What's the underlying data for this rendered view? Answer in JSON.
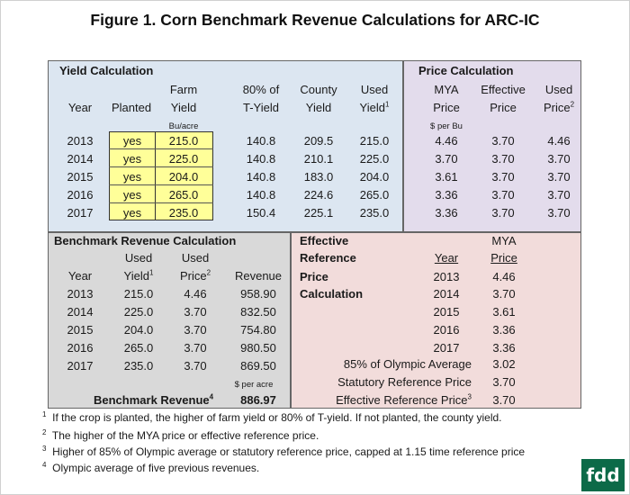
{
  "title": "Figure 1. Corn Benchmark Revenue Calculations for ARC-IC",
  "yield_calc": {
    "heading": "Yield Calculation",
    "h_year": "Year",
    "h_planted": "Planted",
    "h_farm_1": "Farm",
    "h_farm_2": "Yield",
    "h_80_1": "80% of",
    "h_80_2": "T-Yield",
    "h_county_1": "County",
    "h_county_2": "Yield",
    "h_used_1": "Used",
    "h_used_2": "Yield",
    "h_used_sup": "1",
    "unit": "Bu/acre",
    "rows": [
      {
        "year": "2013",
        "planted": "yes",
        "farm": "215.0",
        "t80": "140.8",
        "county": "209.5",
        "used": "215.0"
      },
      {
        "year": "2014",
        "planted": "yes",
        "farm": "225.0",
        "t80": "140.8",
        "county": "210.1",
        "used": "225.0"
      },
      {
        "year": "2015",
        "planted": "yes",
        "farm": "204.0",
        "t80": "140.8",
        "county": "183.0",
        "used": "204.0"
      },
      {
        "year": "2016",
        "planted": "yes",
        "farm": "265.0",
        "t80": "140.8",
        "county": "224.6",
        "used": "265.0"
      },
      {
        "year": "2017",
        "planted": "yes",
        "farm": "235.0",
        "t80": "150.4",
        "county": "225.1",
        "used": "235.0"
      }
    ]
  },
  "price_calc": {
    "heading": "Price Calculation",
    "h_mya_1": "MYA",
    "h_mya_2": "Price",
    "h_eff_1": "Effective",
    "h_eff_2": "Price",
    "h_used_1": "Used",
    "h_used_2": "Price",
    "h_used_sup": "2",
    "unit": "$ per Bu",
    "rows": [
      {
        "mya": "4.46",
        "eff": "3.70",
        "used": "4.46"
      },
      {
        "mya": "3.70",
        "eff": "3.70",
        "used": "3.70"
      },
      {
        "mya": "3.61",
        "eff": "3.70",
        "used": "3.70"
      },
      {
        "mya": "3.36",
        "eff": "3.70",
        "used": "3.70"
      },
      {
        "mya": "3.36",
        "eff": "3.70",
        "used": "3.70"
      }
    ]
  },
  "bench_calc": {
    "heading": "Benchmark Revenue Calculation",
    "h_year": "Year",
    "h_yield_1": "Used",
    "h_yield_2": "Yield",
    "h_yield_sup": "1",
    "h_price_1": "Used",
    "h_price_2": "Price",
    "h_price_sup": "2",
    "h_rev": "Revenue",
    "unit": "$ per acre",
    "rows": [
      {
        "year": "2013",
        "yield": "215.0",
        "price": "4.46",
        "rev": "958.90"
      },
      {
        "year": "2014",
        "yield": "225.0",
        "price": "3.70",
        "rev": "832.50"
      },
      {
        "year": "2015",
        "yield": "204.0",
        "price": "3.70",
        "rev": "754.80"
      },
      {
        "year": "2016",
        "yield": "265.0",
        "price": "3.70",
        "rev": "980.50"
      },
      {
        "year": "2017",
        "yield": "235.0",
        "price": "3.70",
        "rev": "869.50"
      }
    ],
    "total_label": "Benchmark Revenue",
    "total_sup": "4",
    "total_value": "886.97"
  },
  "ref_calc": {
    "label_1": "Effective",
    "label_2": "Reference",
    "label_3": "Price",
    "label_4": "Calculation",
    "h_year": "Year",
    "h_mya_1": "MYA",
    "h_mya_2": "Price",
    "rows": [
      {
        "year": "2013",
        "mya": "4.46"
      },
      {
        "year": "2014",
        "mya": "3.70"
      },
      {
        "year": "2015",
        "mya": "3.61"
      },
      {
        "year": "2016",
        "mya": "3.36"
      },
      {
        "year": "2017",
        "mya": "3.36"
      }
    ],
    "olympic_label": "85% of Olympic Average",
    "olympic_value": "3.02",
    "statutory_label": "Statutory Reference Price",
    "statutory_value": "3.70",
    "effective_label": "Effective Reference Price",
    "effective_sup": "3",
    "effective_value": "3.70"
  },
  "footnotes": [
    {
      "num": "1",
      "text": "If the crop is planted, the higher of farm yield or 80% of T-yield.  If not planted, the county yield."
    },
    {
      "num": "2",
      "text": "The higher of the MYA price or effective reference price."
    },
    {
      "num": "3",
      "text": "Higher of 85% of Olympic average or statutory reference price, capped at 1.15 time reference price"
    },
    {
      "num": "4",
      "text": "Olympic average of five previous revenues."
    }
  ],
  "logo": "fdd",
  "colors": {
    "yield_bg": "#dce6f1",
    "price_bg": "#e3dcec",
    "bench_bg": "#d9d9d9",
    "ref_bg": "#f2dcdb",
    "highlight": "#ffff99",
    "logo_bg": "#0c6a48"
  }
}
